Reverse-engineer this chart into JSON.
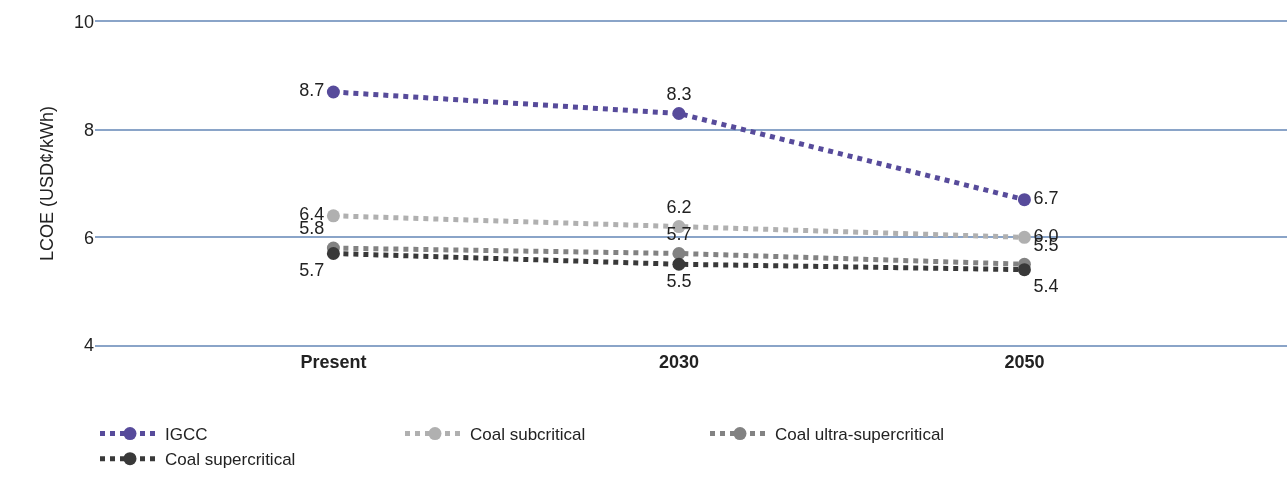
{
  "chart_data": {
    "type": "line",
    "ylabel": "LCOE (USD¢/kWh)",
    "categories": [
      "Present",
      "2030",
      "2050"
    ],
    "series": [
      {
        "name": "IGCC",
        "color": "#574b9b",
        "values": [
          8.7,
          8.3,
          6.7
        ],
        "value_labels": [
          "8.7",
          "8.3",
          "6.7"
        ]
      },
      {
        "name": "Coal subcritical",
        "color": "#b0b0b0",
        "values": [
          6.4,
          6.2,
          6.0
        ],
        "value_labels": [
          "6.4",
          "6.2",
          "6.0"
        ]
      },
      {
        "name": "Coal ultra-supercritical",
        "color": "#828282",
        "values": [
          5.8,
          5.7,
          5.5
        ],
        "value_labels": [
          "5.8",
          "5.7",
          "5.5"
        ]
      },
      {
        "name": "Coal supercritical",
        "color": "#393939",
        "values": [
          5.7,
          5.5,
          5.4
        ],
        "value_labels": [
          "5.7",
          "5.5",
          "5.4"
        ]
      }
    ],
    "ylim": [
      4,
      10
    ],
    "yticks": [
      4,
      6,
      8,
      10
    ],
    "grid": "y",
    "legend": "bottom",
    "marker": "circle",
    "line_style": "dotted"
  }
}
